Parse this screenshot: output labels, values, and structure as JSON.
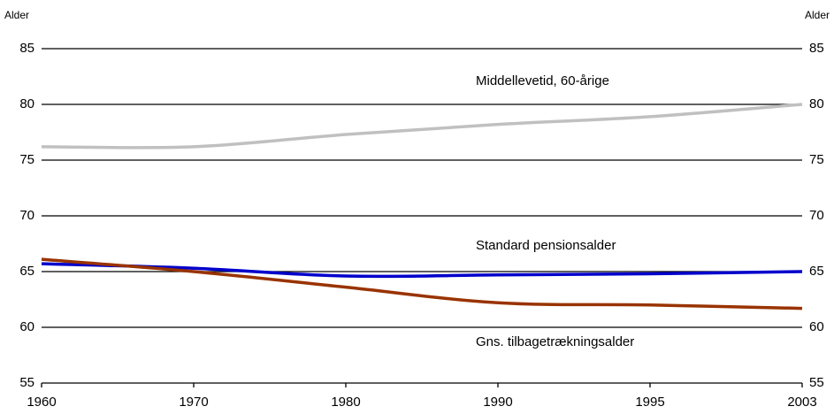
{
  "chart_data": {
    "type": "line",
    "ylabel": "Alder",
    "y2label": "Alder",
    "categories": [
      "1960",
      "1970",
      "1980",
      "1990",
      "1995",
      "2003"
    ],
    "series": [
      {
        "name": "Middellevetid, 60-årige",
        "color": "#c0c0c0",
        "values": [
          76.2,
          76.2,
          77.3,
          78.2,
          78.9,
          80.0
        ]
      },
      {
        "name": "Standard pensionsalder",
        "color": "#0000cc",
        "values": [
          65.7,
          65.3,
          64.6,
          64.7,
          64.8,
          65.0
        ]
      },
      {
        "name": "Gns. tilbagetrækningsalder",
        "color": "#993300",
        "values": [
          66.1,
          65.0,
          63.6,
          62.2,
          62.0,
          61.7
        ]
      }
    ],
    "ylim": [
      55,
      85
    ],
    "yticks": [
      55,
      60,
      65,
      70,
      75,
      80,
      85
    ],
    "y2lim": [
      55,
      85
    ],
    "y2ticks": [
      55,
      60,
      65,
      70,
      75,
      80,
      85
    ],
    "grid": true
  }
}
